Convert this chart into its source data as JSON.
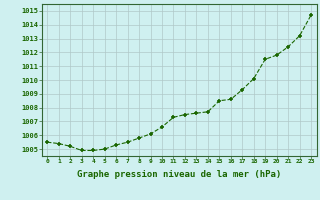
{
  "x": [
    0,
    1,
    2,
    3,
    4,
    5,
    6,
    7,
    8,
    9,
    10,
    11,
    12,
    13,
    14,
    15,
    16,
    17,
    18,
    19,
    20,
    21,
    22,
    23
  ],
  "y": [
    1005.5,
    1005.4,
    1005.2,
    1004.9,
    1004.9,
    1005.0,
    1005.3,
    1005.5,
    1005.8,
    1006.1,
    1006.6,
    1007.3,
    1007.5,
    1007.6,
    1007.7,
    1008.5,
    1008.6,
    1009.3,
    1010.1,
    1011.5,
    1011.8,
    1012.4,
    1013.2,
    1014.7
  ],
  "line_color": "#1a6600",
  "marker": "+",
  "bg_color": "#cff0f0",
  "grid_color": "#b0c8c8",
  "ylabel_ticks": [
    1005,
    1006,
    1007,
    1008,
    1009,
    1010,
    1011,
    1012,
    1013,
    1014,
    1015
  ],
  "ylim": [
    1004.5,
    1015.5
  ],
  "xlim": [
    -0.5,
    23.5
  ],
  "xlabel": "Graphe pression niveau de la mer (hPa)",
  "xlabel_color": "#1a6600",
  "tick_color": "#1a6600",
  "marker_size": 3,
  "line_width": 0.8
}
